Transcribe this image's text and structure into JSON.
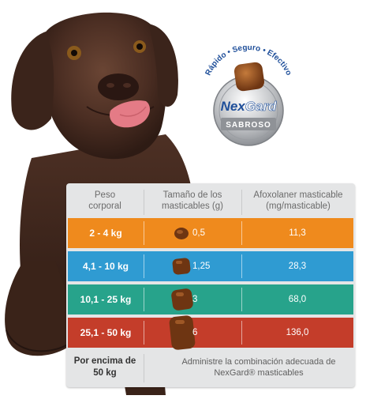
{
  "badge": {
    "arc_text": "Rápido • Seguro • Efectivo",
    "brand_part1": "Nex",
    "brand_part2": "Gard",
    "ribbon": "SABROSO"
  },
  "table": {
    "headers": [
      "Peso\ncorporal",
      "Tamaño de los\nmasticables (g)",
      "Afoxolaner masticable\n(mg/masticable)"
    ],
    "rows": [
      {
        "weight": "2 - 4 kg",
        "size": "0,5",
        "mg": "11,3",
        "color": "#ef8a1d"
      },
      {
        "weight": "4,1 - 10 kg",
        "size": "1,25",
        "mg": "28,3",
        "color": "#2f9bd2"
      },
      {
        "weight": "10,1 - 25 kg",
        "size": "3",
        "mg": "68,0",
        "color": "#27a38b"
      },
      {
        "weight": "25,1 - 50 kg",
        "size": "6",
        "mg": "136,0",
        "color": "#c43d2a"
      }
    ],
    "footer": {
      "weight_line1": "Por encima de",
      "weight_line2": "50 kg",
      "note_line1": "Administre la combinación adecuada de",
      "note_line2": "NexGard® masticables"
    }
  }
}
